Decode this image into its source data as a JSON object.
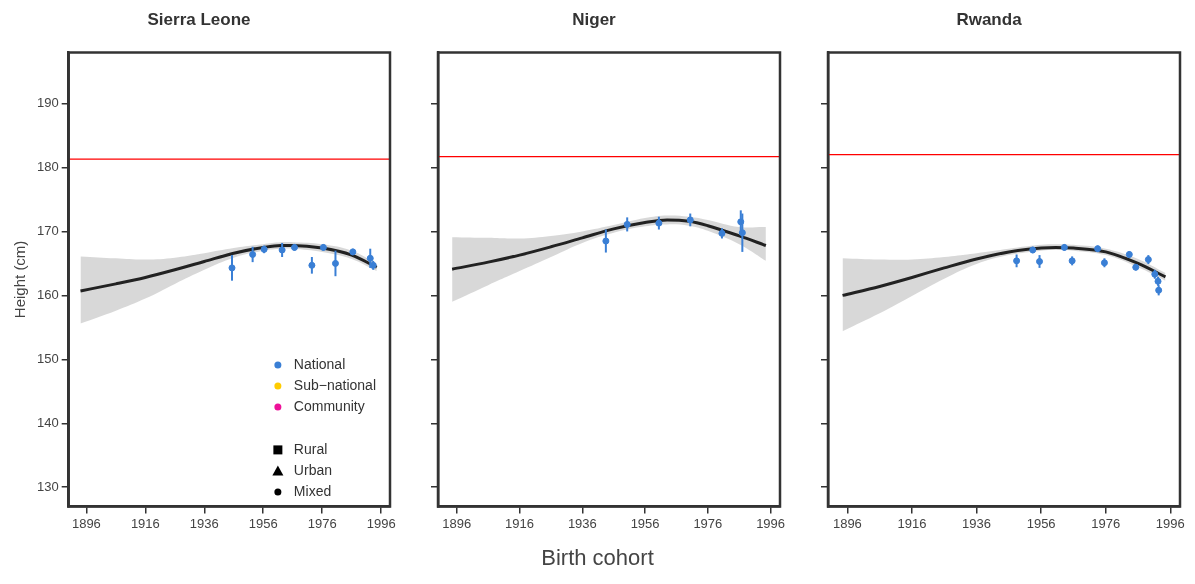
{
  "chart_data": [
    {
      "type": "line",
      "title": "Sierra Leone",
      "ylabel": "Height (cm)",
      "xlim": [
        1890,
        1999
      ],
      "xticks": [
        1896,
        1916,
        1936,
        1956,
        1976,
        1996
      ],
      "ylim": [
        127,
        198
      ],
      "yticks": [
        130,
        140,
        150,
        160,
        170,
        180,
        190
      ],
      "grid": false,
      "legend": "bottom right",
      "ref_lines": [
        {
          "axis": "y",
          "value": 181.3,
          "color": "#ff0000"
        }
      ],
      "series": [
        {
          "color": "#222222",
          "marker": "none",
          "x": [
            1894,
            1906,
            1916,
            1926,
            1936,
            1946,
            1956,
            1962,
            1966,
            1976,
            1986,
            1994.5
          ],
          "values": [
            160.7,
            161.8,
            162.8,
            164.0,
            165.3,
            166.6,
            167.5,
            167.8,
            167.8,
            167.4,
            166.3,
            164.4
          ],
          "lower": [
            155.6,
            157.6,
            159.5,
            161.8,
            164.0,
            165.9,
            167.0,
            167.3,
            167.3,
            166.8,
            165.7,
            163.8
          ],
          "upper": [
            166.1,
            165.8,
            165.6,
            165.9,
            166.6,
            167.4,
            168.0,
            168.3,
            168.3,
            168.0,
            167.0,
            165.0
          ]
        },
        {
          "type": "scatter",
          "name": "National",
          "color": "#3a7fd5",
          "marker": "circle",
          "x": [
            1945.4,
            1952.4,
            1956.3,
            1962.4,
            1966.6,
            1972.5,
            1976.4,
            1980.5,
            1986.4,
            1992.3,
            1993.3
          ],
          "values": [
            164.3,
            166.4,
            167.2,
            167.1,
            167.5,
            164.7,
            167.5,
            165.0,
            166.8,
            165.8,
            164.7
          ],
          "errors": [
            2,
            1.2,
            0.6,
            1.1,
            0.5,
            1.3,
            0.5,
            2,
            0.5,
            1.5,
            0.7
          ]
        },
        {
          "type": "scatter",
          "name": "Sub−national",
          "color": "#ffcc00",
          "marker": "circle"
        },
        {
          "type": "scatter",
          "name": "Community",
          "color": "#ee1199",
          "marker": "circle"
        },
        {
          "type": "scatter",
          "name": "Rural",
          "color": "#000000",
          "marker": "square"
        },
        {
          "type": "scatter",
          "name": "Urban",
          "color": "#000000",
          "marker": "triangle"
        },
        {
          "type": "scatter",
          "name": "Mixed",
          "color": "#000000",
          "marker": "circle"
        }
      ]
    },
    {
      "type": "line",
      "title": "Niger",
      "xlabel": "Birth cohort",
      "tick_labels": "x",
      "xlim": [
        1890,
        1999
      ],
      "xticks": [
        1896,
        1916,
        1936,
        1956,
        1976,
        1996
      ],
      "ylim": [
        127,
        198
      ],
      "yticks": [
        130,
        140,
        150,
        160,
        170,
        180,
        190
      ],
      "grid": false,
      "ref_lines": [
        {
          "axis": "y",
          "value": 181.7,
          "color": "#ff0000"
        }
      ],
      "series": [
        {
          "color": "#222222",
          "marker": "none",
          "x": [
            1894.5,
            1906,
            1916,
            1926,
            1936,
            1946,
            1956,
            1963,
            1970,
            1976,
            1986,
            1994.5
          ],
          "values": [
            164.1,
            165.2,
            166.3,
            167.6,
            169.0,
            170.4,
            171.4,
            171.8,
            171.6,
            170.9,
            169.3,
            167.8
          ],
          "lower": [
            159.0,
            161.6,
            163.8,
            166.0,
            168.2,
            169.8,
            170.8,
            171.1,
            170.9,
            170.1,
            168.0,
            165.4
          ],
          "upper": [
            169.1,
            169.0,
            168.9,
            169.3,
            170.0,
            171.0,
            172.1,
            172.5,
            172.3,
            171.8,
            170.7,
            170.7
          ]
        },
        {
          "type": "scatter",
          "color": "#3a7fd5",
          "marker": "circle",
          "x": [
            1943.5,
            1950.3,
            1960.4,
            1970.4,
            1980.5,
            1986.5,
            1987
          ],
          "values": [
            168.5,
            171.1,
            171.3,
            171.8,
            169.7,
            171.5,
            169.8
          ],
          "errors": [
            1.8,
            1.1,
            1,
            1,
            0.8,
            1.8,
            3
          ]
        }
      ]
    },
    {
      "type": "line",
      "title": "Rwanda",
      "tick_labels": "x",
      "xlim": [
        1890,
        1999
      ],
      "xticks": [
        1896,
        1916,
        1936,
        1956,
        1976,
        1996
      ],
      "ylim": [
        127,
        198
      ],
      "yticks": [
        130,
        140,
        150,
        160,
        170,
        180,
        190
      ],
      "grid": false,
      "ref_lines": [
        {
          "axis": "y",
          "value": 182,
          "color": "#ff0000"
        }
      ],
      "series": [
        {
          "color": "#222222",
          "marker": "none",
          "x": [
            1894.5,
            1906,
            1916,
            1926,
            1936,
            1946,
            1956,
            1960.5,
            1966,
            1976,
            1986,
            1994.5
          ],
          "values": [
            160.0,
            161.4,
            162.8,
            164.3,
            165.7,
            166.8,
            167.4,
            167.5,
            167.4,
            166.8,
            165.0,
            162.9
          ],
          "lower": [
            154.4,
            157.2,
            159.9,
            162.6,
            164.9,
            166.3,
            167.0,
            167.1,
            167.0,
            166.3,
            164.4,
            162.3
          ],
          "upper": [
            165.8,
            165.6,
            165.6,
            166.0,
            166.6,
            167.3,
            167.9,
            168.0,
            167.9,
            167.3,
            165.7,
            163.5
          ]
        },
        {
          "type": "scatter",
          "color": "#3a7fd5",
          "marker": "circle",
          "x": [
            1948.4,
            1953.4,
            1955.5,
            1963.2,
            1965.6,
            1973.5,
            1975.6,
            1983.3,
            1985.3,
            1989.2,
            1991.2,
            1992.2,
            1992.4
          ],
          "values": [
            165.4,
            167.1,
            165.3,
            167.5,
            165.4,
            167.3,
            165.1,
            166.4,
            164.4,
            165.6,
            163.3,
            162.2,
            160.8
          ],
          "errors": [
            1,
            0.5,
            1,
            0.5,
            0.7,
            0.5,
            0.7,
            0.5,
            0.5,
            0.7,
            0.7,
            0.7,
            0.8
          ]
        }
      ]
    }
  ]
}
